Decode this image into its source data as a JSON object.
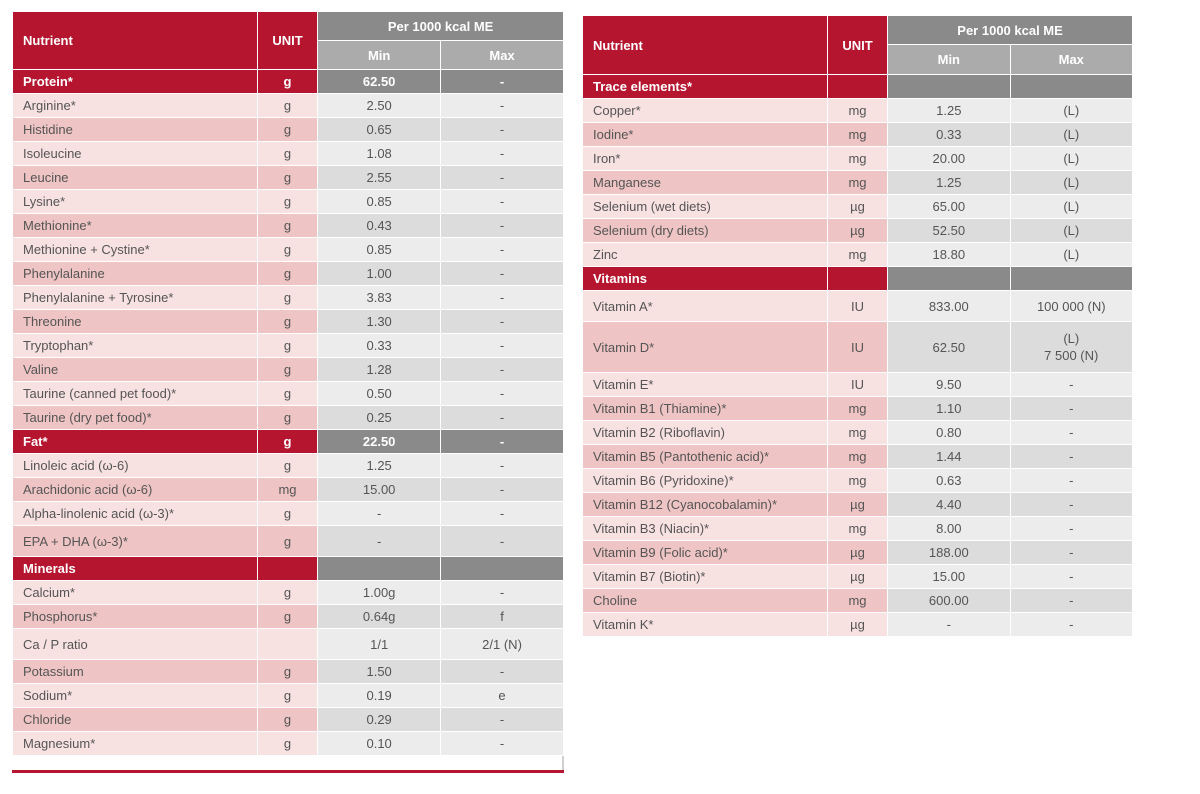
{
  "left": {
    "header": {
      "nutrient": "Nutrient",
      "unit": "UNIT",
      "group": "Per 1000 kcal ME",
      "min": "Min",
      "max": "Max"
    },
    "rows": [
      {
        "kind": "section",
        "name": "Protein*",
        "unit": "g",
        "min": "62.50",
        "max": "-"
      },
      {
        "kind": "row",
        "name": "Arginine*",
        "unit": "g",
        "min": "2.50",
        "max": "-"
      },
      {
        "kind": "row",
        "name": "Histidine",
        "unit": "g",
        "min": "0.65",
        "max": "-"
      },
      {
        "kind": "row",
        "name": "Isoleucine",
        "unit": "g",
        "min": "1.08",
        "max": "-"
      },
      {
        "kind": "row",
        "name": "Leucine",
        "unit": "g",
        "min": "2.55",
        "max": "-"
      },
      {
        "kind": "row",
        "name": "Lysine*",
        "unit": "g",
        "min": "0.85",
        "max": "-"
      },
      {
        "kind": "row",
        "name": "Methionine*",
        "unit": "g",
        "min": "0.43",
        "max": "-"
      },
      {
        "kind": "row",
        "name": "Methionine + Cystine*",
        "unit": "g",
        "min": "0.85",
        "max": "-"
      },
      {
        "kind": "row",
        "name": "Phenylalanine",
        "unit": "g",
        "min": "1.00",
        "max": "-"
      },
      {
        "kind": "row",
        "name": "Phenylalanine + Tyrosine*",
        "unit": "g",
        "min": "3.83",
        "max": "-"
      },
      {
        "kind": "row",
        "name": "Threonine",
        "unit": "g",
        "min": "1.30",
        "max": "-"
      },
      {
        "kind": "row",
        "name": "Tryptophan*",
        "unit": "g",
        "min": "0.33",
        "max": "-"
      },
      {
        "kind": "row",
        "name": "Valine",
        "unit": "g",
        "min": "1.28",
        "max": "-"
      },
      {
        "kind": "row",
        "name": "Taurine (canned pet food)*",
        "unit": "g",
        "min": "0.50",
        "max": "-"
      },
      {
        "kind": "row",
        "name": "Taurine (dry pet food)*",
        "unit": "g",
        "min": "0.25",
        "max": "-"
      },
      {
        "kind": "section",
        "name": "Fat*",
        "unit": "g",
        "min": "22.50",
        "max": "-"
      },
      {
        "kind": "row",
        "name": "Linoleic acid (ω-6)",
        "unit": "g",
        "min": "1.25",
        "max": "-"
      },
      {
        "kind": "row",
        "name": "Arachidonic acid (ω-6)",
        "unit": "mg",
        "min": "15.00",
        "max": "-"
      },
      {
        "kind": "row",
        "name": "Alpha-linolenic acid (ω-3)*",
        "unit": "g",
        "min": "-",
        "max": "-"
      },
      {
        "kind": "row",
        "name": "EPA + DHA (ω-3)*",
        "unit": "g",
        "min": "-",
        "max": "-",
        "h": "r30"
      },
      {
        "kind": "section",
        "name": "Minerals",
        "unit": "",
        "min": "",
        "max": ""
      },
      {
        "kind": "row",
        "name": "Calcium*",
        "unit": "g",
        "min": "1.00g",
        "max": "-"
      },
      {
        "kind": "row",
        "name": "Phosphorus*",
        "unit": "g",
        "min": "0.64g",
        "max": "f"
      },
      {
        "kind": "row",
        "name": "Ca / P ratio",
        "unit": "",
        "min": "1/1",
        "max": "2/1 (N)",
        "h": "r30"
      },
      {
        "kind": "row",
        "name": "Potassium",
        "unit": "g",
        "min": "1.50",
        "max": "-"
      },
      {
        "kind": "row",
        "name": "Sodium*",
        "unit": "g",
        "min": "0.19",
        "max": "e"
      },
      {
        "kind": "row",
        "name": "Chloride",
        "unit": "g",
        "min": "0.29",
        "max": "-"
      },
      {
        "kind": "row",
        "name": "Magnesium*",
        "unit": "g",
        "min": "0.10",
        "max": "-"
      }
    ]
  },
  "right": {
    "header": {
      "nutrient": "Nutrient",
      "unit": "UNIT",
      "group": "Per 1000 kcal ME",
      "min": "Min",
      "max": "Max"
    },
    "rows": [
      {
        "kind": "section",
        "name": "Trace elements*",
        "unit": "",
        "min": "",
        "max": ""
      },
      {
        "kind": "row",
        "name": "Copper*",
        "unit": "mg",
        "min": "1.25",
        "max": "(L)"
      },
      {
        "kind": "row",
        "name": "Iodine*",
        "unit": "mg",
        "min": "0.33",
        "max": "(L)"
      },
      {
        "kind": "row",
        "name": "Iron*",
        "unit": "mg",
        "min": "20.00",
        "max": "(L)"
      },
      {
        "kind": "row",
        "name": "Manganese",
        "unit": "mg",
        "min": "1.25",
        "max": "(L)"
      },
      {
        "kind": "row",
        "name": "Selenium (wet diets)",
        "unit": "µg",
        "min": "65.00",
        "max": "(L)"
      },
      {
        "kind": "row",
        "name": "Selenium (dry diets)",
        "unit": "µg",
        "min": "52.50",
        "max": "(L)"
      },
      {
        "kind": "row",
        "name": "Zinc",
        "unit": "mg",
        "min": "18.80",
        "max": "(L)"
      },
      {
        "kind": "section",
        "name": "Vitamins",
        "unit": "",
        "min": "",
        "max": ""
      },
      {
        "kind": "row",
        "name": "Vitamin A*",
        "unit": "IU",
        "min": "833.00",
        "max": "100 000 (N)",
        "h": "r30"
      },
      {
        "kind": "row",
        "name": "Vitamin D*",
        "unit": "IU",
        "min": "62.50",
        "max": "(L)\n7 500 (N)",
        "h": "r50"
      },
      {
        "kind": "row",
        "name": "Vitamin E*",
        "unit": "IU",
        "min": "9.50",
        "max": "-"
      },
      {
        "kind": "row",
        "name": "Vitamin B1 (Thiamine)*",
        "unit": "mg",
        "min": "1.10",
        "max": "-"
      },
      {
        "kind": "row",
        "name": "Vitamin B2 (Riboflavin)",
        "unit": "mg",
        "min": "0.80",
        "max": "-"
      },
      {
        "kind": "row",
        "name": "Vitamin B5 (Pantothenic acid)*",
        "unit": "mg",
        "min": "1.44",
        "max": "-"
      },
      {
        "kind": "row",
        "name": "Vitamin B6 (Pyridoxine)*",
        "unit": "mg",
        "min": "0.63",
        "max": "-"
      },
      {
        "kind": "row",
        "name": "Vitamin B12 (Cyanocobalamin)*",
        "unit": "µg",
        "min": "4.40",
        "max": "-"
      },
      {
        "kind": "row",
        "name": "Vitamin B3 (Niacin)*",
        "unit": "mg",
        "min": "8.00",
        "max": "-"
      },
      {
        "kind": "row",
        "name": "Vitamin B9 (Folic acid)*",
        "unit": "µg",
        "min": "188.00",
        "max": "-"
      },
      {
        "kind": "row",
        "name": "Vitamin B7 (Biotin)*",
        "unit": "µg",
        "min": "15.00",
        "max": "-"
      },
      {
        "kind": "row",
        "name": "Choline",
        "unit": "mg",
        "min": "600.00",
        "max": "-"
      },
      {
        "kind": "row",
        "name": "Vitamin K*",
        "unit": "µg",
        "min": "-",
        "max": "-"
      }
    ]
  }
}
